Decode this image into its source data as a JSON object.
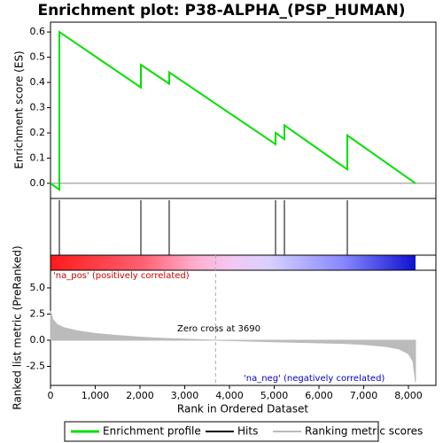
{
  "chart_data": [
    {
      "type": "line",
      "title": "Enrichment plot: P38-ALPHA_(PSP_HUMAN)",
      "ylabel": "Enrichment score (ES)",
      "xlim": [
        0,
        8614
      ],
      "ylim": [
        -0.06,
        0.639
      ],
      "yticks": [
        {
          "value": 0,
          "label": "0.0"
        },
        {
          "value": 0.1,
          "label": "0.1"
        },
        {
          "value": 0.2,
          "label": "0.2"
        },
        {
          "value": 0.3,
          "label": "0.3"
        },
        {
          "value": 0.4,
          "label": "0.4"
        },
        {
          "value": 0.5,
          "label": "0.5"
        },
        {
          "value": 0.6,
          "label": "0.6"
        }
      ],
      "x": [
        0,
        198,
        198,
        2020,
        2020,
        2653,
        2653,
        5030,
        5030,
        5228,
        5228,
        6634,
        6634,
        8158
      ],
      "series": [
        {
          "name": "Enrichment profile",
          "color": "#00e000",
          "values": [
            0,
            -0.025,
            0.6,
            0.38,
            0.47,
            0.395,
            0.44,
            0.155,
            0.2,
            0.175,
            0.23,
            0.055,
            0.19,
            0.0
          ]
        }
      ],
      "hits": {
        "name": "Hits",
        "color": "#000000",
        "x": [
          198,
          2020,
          2653,
          5030,
          5228,
          6634
        ]
      }
    },
    {
      "type": "area",
      "xlabel": "Rank in Ordered Dataset",
      "ylabel": "Ranked list metric (PreRanked)",
      "xlim": [
        0,
        8614
      ],
      "xticks": [
        0,
        {
          "value": 1000,
          "label": "1,000"
        },
        {
          "value": 2000,
          "label": "2,000"
        },
        {
          "value": 3000,
          "label": "3,000"
        },
        {
          "value": 4000,
          "label": "4,000"
        },
        {
          "value": 5000,
          "label": "5,000"
        },
        {
          "value": 6000,
          "label": "6,000"
        },
        {
          "value": 7000,
          "label": "7,000"
        },
        {
          "value": 8000,
          "label": "8,000"
        }
      ],
      "ylim": [
        -4.32,
        6.69
      ],
      "yticks": [
        {
          "value": -2.5,
          "label": "-2.5"
        },
        {
          "value": 0,
          "label": "0.0"
        },
        {
          "value": 2.5,
          "label": "2.5"
        },
        {
          "value": 5,
          "label": "5.0"
        }
      ],
      "series": [
        {
          "name": "Ranking metric scores",
          "color": "#bbbbbb",
          "x": [
            0,
            50,
            150,
            300,
            600,
            1000,
            1500,
            2000,
            2500,
            3000,
            3690,
            4500,
            5500,
            6500,
            7000,
            7500,
            7800,
            8000,
            8100,
            8158
          ],
          "values": [
            2.8,
            2.0,
            1.5,
            1.2,
            0.9,
            0.65,
            0.45,
            0.3,
            0.18,
            0.1,
            0,
            -0.1,
            -0.2,
            -0.3,
            -0.4,
            -0.6,
            -0.85,
            -1.3,
            -2.0,
            -4.0
          ]
        }
      ],
      "zero_cross": 3690,
      "annotations": [
        "'na_pos' (positively correlated)",
        "Zero cross at 3690",
        "'na_neg' (negatively correlated)"
      ]
    }
  ]
}
